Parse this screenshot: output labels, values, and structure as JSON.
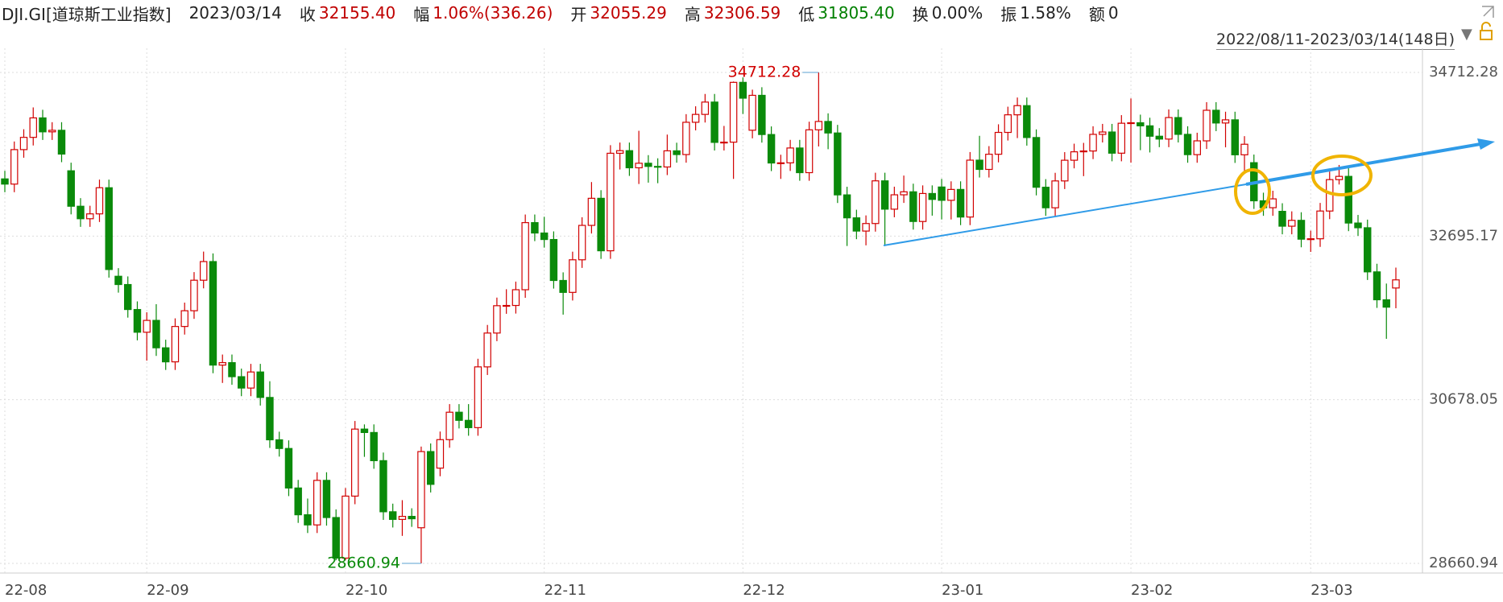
{
  "header": {
    "symbol": "DJI.GI[道琼斯工业指数]",
    "date": "2023/03/14",
    "items": [
      {
        "label": "收",
        "value": "32155.40",
        "color": "#c00000"
      },
      {
        "label": "幅",
        "value": "1.06%(336.26)",
        "color": "#c00000"
      },
      {
        "label": "开",
        "value": "32055.29",
        "color": "#c00000"
      },
      {
        "label": "高",
        "value": "32306.59",
        "color": "#c00000"
      },
      {
        "label": "低",
        "value": "31805.40",
        "color": "#008000"
      },
      {
        "label": "换",
        "value": "0.00%",
        "color": "#222222"
      },
      {
        "label": "振",
        "value": "1.58%",
        "color": "#222222"
      },
      {
        "label": "额",
        "value": "0",
        "color": "#222222"
      }
    ],
    "range": "2022/08/11-2023/03/14(148日)"
  },
  "chart_data": {
    "type": "candlestick",
    "up_color": "#d10000",
    "down_color": "#0a8a0a",
    "grid": true,
    "ylim": [
      28660.94,
      34712.28
    ],
    "yticks": [
      28660.94,
      30678.05,
      32695.17,
      34712.28
    ],
    "xlim": [
      0,
      147
    ],
    "xticks": [
      {
        "value": 0,
        "label": "22-08"
      },
      {
        "value": 15,
        "label": "22-09"
      },
      {
        "value": 36,
        "label": "22-10"
      },
      {
        "value": 57,
        "label": "22-11"
      },
      {
        "value": 78,
        "label": "22-12"
      },
      {
        "value": 99,
        "label": "23-01"
      },
      {
        "value": 119,
        "label": "23-02"
      },
      {
        "value": 138,
        "label": "23-03"
      }
    ],
    "max_index": 86,
    "min_index": 44,
    "ohlc": [
      [
        33400,
        33500,
        33236,
        33336
      ],
      [
        33336,
        33861,
        33236,
        33761
      ],
      [
        33761,
        34012,
        33661,
        33912
      ],
      [
        33912,
        34281,
        33812,
        34152
      ],
      [
        34152,
        34252,
        33880,
        33980
      ],
      [
        33980,
        34099,
        33880,
        33999
      ],
      [
        33999,
        34099,
        33606,
        33706
      ],
      [
        33500,
        33600,
        32963,
        33063
      ],
      [
        33063,
        33163,
        32809,
        32909
      ],
      [
        32909,
        33069,
        32809,
        32969
      ],
      [
        32969,
        33391,
        32869,
        33291
      ],
      [
        33291,
        33391,
        32183,
        32283
      ],
      [
        32200,
        32300,
        31998,
        32098
      ],
      [
        32098,
        32198,
        31690,
        31790
      ],
      [
        31790,
        31890,
        31410,
        31510
      ],
      [
        31510,
        31756,
        31160,
        31656
      ],
      [
        31656,
        31856,
        31218,
        31318
      ],
      [
        31318,
        31418,
        31045,
        31145
      ],
      [
        31145,
        31681,
        31045,
        31581
      ],
      [
        31581,
        31875,
        31481,
        31775
      ],
      [
        31775,
        32251,
        31675,
        32151
      ],
      [
        32151,
        32504,
        32051,
        32381
      ],
      [
        32381,
        32481,
        31005,
        31105
      ],
      [
        31105,
        31235,
        30885,
        31135
      ],
      [
        31135,
        31235,
        30862,
        30962
      ],
      [
        30962,
        31062,
        30722,
        30822
      ],
      [
        30822,
        31120,
        30722,
        31020
      ],
      [
        31020,
        31120,
        30606,
        30706
      ],
      [
        30706,
        30906,
        30084,
        30184
      ],
      [
        30184,
        30284,
        29977,
        30077
      ],
      [
        30077,
        30177,
        29490,
        29590
      ],
      [
        29590,
        29690,
        29160,
        29260
      ],
      [
        29260,
        29460,
        29035,
        29135
      ],
      [
        29135,
        29784,
        29035,
        29684
      ],
      [
        29684,
        29784,
        29126,
        29226
      ],
      [
        29226,
        29326,
        28700,
        28726
      ],
      [
        28726,
        29590,
        28700,
        29490
      ],
      [
        29490,
        30416,
        29390,
        30316
      ],
      [
        30316,
        30374,
        29974,
        30274
      ],
      [
        30274,
        30374,
        29827,
        29927
      ],
      [
        29927,
        30027,
        29197,
        29297
      ],
      [
        29297,
        29397,
        29103,
        29203
      ],
      [
        29203,
        29440,
        29000,
        29240
      ],
      [
        29240,
        29340,
        29111,
        29211
      ],
      [
        29100,
        30100,
        28660.94,
        30039
      ],
      [
        30039,
        30139,
        29535,
        29635
      ],
      [
        29835,
        30286,
        29735,
        30186
      ],
      [
        30186,
        30624,
        30086,
        30524
      ],
      [
        30524,
        30624,
        30324,
        30424
      ],
      [
        30424,
        30624,
        30234,
        30334
      ],
      [
        30334,
        31183,
        30234,
        31083
      ],
      [
        31083,
        31600,
        30983,
        31500
      ],
      [
        31500,
        31937,
        31400,
        31837
      ],
      [
        31837,
        32040,
        31737,
        31840
      ],
      [
        31840,
        32134,
        31740,
        32034
      ],
      [
        32034,
        32961,
        31934,
        32861
      ],
      [
        32861,
        32961,
        32633,
        32733
      ],
      [
        32733,
        32933,
        32553,
        32653
      ],
      [
        32653,
        32753,
        32048,
        32148
      ],
      [
        32148,
        32248,
        31727,
        32001
      ],
      [
        32001,
        32503,
        31901,
        32403
      ],
      [
        32403,
        32927,
        32303,
        32827
      ],
      [
        32827,
        33361,
        32727,
        33161
      ],
      [
        33161,
        33261,
        32414,
        32514
      ],
      [
        32514,
        33816,
        32414,
        33716
      ],
      [
        33716,
        33848,
        33516,
        33748
      ],
      [
        33748,
        33848,
        33437,
        33537
      ],
      [
        33537,
        33993,
        33337,
        33593
      ],
      [
        33593,
        33693,
        33354,
        33554
      ],
      [
        33554,
        33654,
        33347,
        33547
      ],
      [
        33547,
        33946,
        33447,
        33746
      ],
      [
        33746,
        33846,
        33600,
        33700
      ],
      [
        33700,
        34198,
        33600,
        34098
      ],
      [
        34098,
        34295,
        33998,
        34195
      ],
      [
        34195,
        34447,
        34095,
        34347
      ],
      [
        34347,
        34447,
        33750,
        33850
      ],
      [
        33850,
        34053,
        33750,
        33853
      ],
      [
        33853,
        34600,
        33400,
        34590
      ],
      [
        34590,
        34650,
        34200,
        34395
      ],
      [
        34000,
        34500,
        33900,
        34430
      ],
      [
        34430,
        34530,
        33847,
        33947
      ],
      [
        33947,
        34047,
        33496,
        33596
      ],
      [
        33596,
        33698,
        33400,
        33598
      ],
      [
        33598,
        33881,
        33498,
        33781
      ],
      [
        33781,
        33881,
        33377,
        33477
      ],
      [
        33477,
        34105,
        33377,
        34005
      ],
      [
        34005,
        34712.28,
        33800,
        34108
      ],
      [
        34108,
        34208,
        33766,
        33966
      ],
      [
        33966,
        34066,
        33103,
        33203
      ],
      [
        33203,
        33303,
        32573,
        32920
      ],
      [
        32920,
        33020,
        32657,
        32757
      ],
      [
        32757,
        32950,
        32581,
        32850
      ],
      [
        32850,
        33476,
        32750,
        33376
      ],
      [
        33376,
        33476,
        32573,
        33027
      ],
      [
        33027,
        33304,
        32927,
        33204
      ],
      [
        33204,
        33441,
        33104,
        33241
      ],
      [
        33241,
        33341,
        32775,
        32875
      ],
      [
        32875,
        33320,
        32775,
        33220
      ],
      [
        33220,
        33320,
        32947,
        33147
      ],
      [
        33300,
        33400,
        32900,
        33136
      ],
      [
        33136,
        33370,
        32900,
        33270
      ],
      [
        33270,
        33370,
        32830,
        32930
      ],
      [
        32930,
        33731,
        32830,
        33631
      ],
      [
        33631,
        33931,
        33417,
        33517
      ],
      [
        33517,
        33804,
        33417,
        33704
      ],
      [
        33704,
        34073,
        33604,
        33973
      ],
      [
        33973,
        34290,
        33873,
        34190
      ],
      [
        34190,
        34403,
        33903,
        34303
      ],
      [
        34303,
        34403,
        33810,
        33910
      ],
      [
        33910,
        34010,
        33197,
        33297
      ],
      [
        33297,
        33397,
        32944,
        33044
      ],
      [
        33044,
        33475,
        32944,
        33375
      ],
      [
        33375,
        33730,
        33275,
        33630
      ],
      [
        33630,
        33834,
        33530,
        33734
      ],
      [
        33734,
        33844,
        33434,
        33744
      ],
      [
        33744,
        34049,
        33644,
        33949
      ],
      [
        33949,
        34078,
        33849,
        33978
      ],
      [
        33978,
        34078,
        33617,
        33717
      ],
      [
        33717,
        34186,
        33617,
        34086
      ],
      [
        34086,
        34392,
        33600,
        34092
      ],
      [
        34092,
        34192,
        33754,
        34054
      ],
      [
        34054,
        34154,
        33726,
        33926
      ],
      [
        33926,
        34026,
        33791,
        33891
      ],
      [
        33891,
        34256,
        33791,
        34156
      ],
      [
        34156,
        34256,
        33849,
        33949
      ],
      [
        33949,
        34049,
        33599,
        33699
      ],
      [
        33699,
        33969,
        33599,
        33869
      ],
      [
        33869,
        34346,
        33769,
        34246
      ],
      [
        34246,
        34346,
        33989,
        34089
      ],
      [
        34089,
        34228,
        33789,
        34128
      ],
      [
        34128,
        34228,
        33597,
        33697
      ],
      [
        33697,
        33927,
        33497,
        33827
      ],
      [
        33600,
        33700,
        33030,
        33130
      ],
      [
        33130,
        33230,
        32945,
        33045
      ],
      [
        33045,
        33254,
        32945,
        33154
      ],
      [
        33000,
        33100,
        32717,
        32817
      ],
      [
        32817,
        33000,
        32717,
        32889
      ],
      [
        32889,
        32989,
        32557,
        32657
      ],
      [
        32657,
        32762,
        32500,
        32662
      ],
      [
        32662,
        33104,
        32562,
        33004
      ],
      [
        33004,
        33491,
        32904,
        33391
      ],
      [
        33391,
        33572,
        33331,
        33431
      ],
      [
        33431,
        33531,
        32756,
        32856
      ],
      [
        32856,
        32956,
        32698,
        32798
      ],
      [
        32798,
        32898,
        32154,
        32254
      ],
      [
        32254,
        32354,
        31810,
        31910
      ],
      [
        31910,
        32110,
        31429,
        31819
      ],
      [
        32055.29,
        32306.59,
        31805.4,
        32155.4
      ]
    ]
  }
}
